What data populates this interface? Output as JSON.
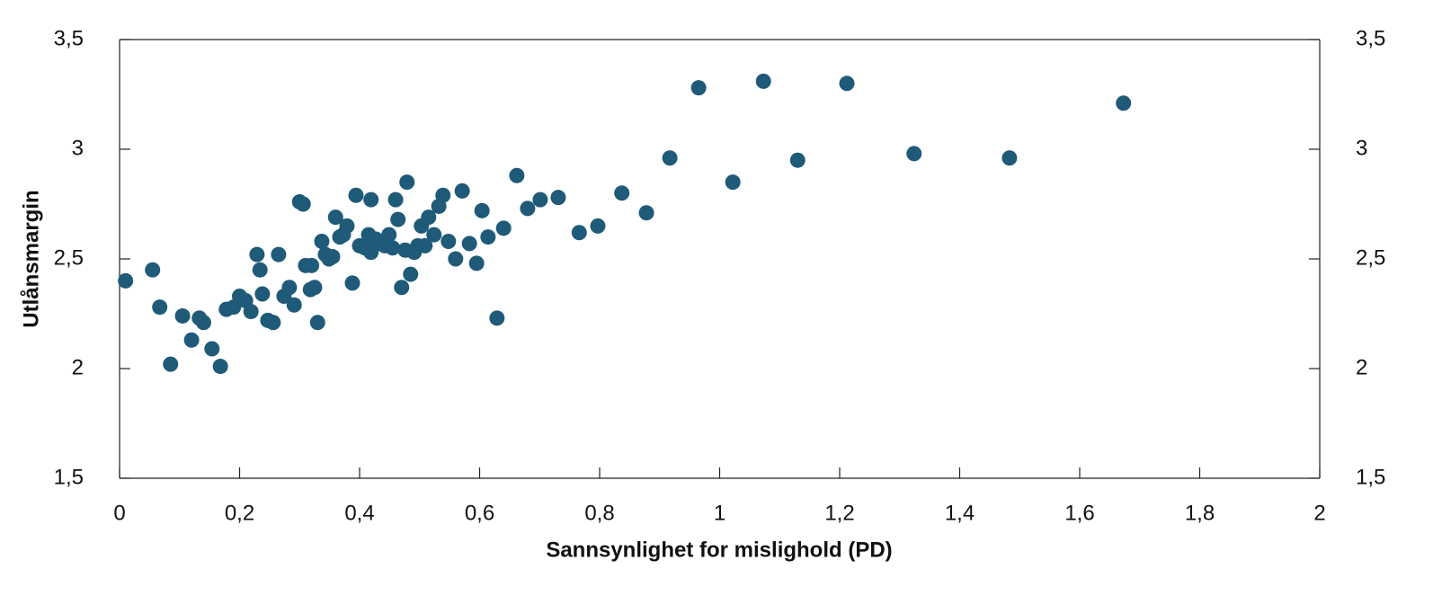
{
  "chart_data": {
    "type": "scatter",
    "xlabel": "Sannsynlighet for mislighold (PD)",
    "ylabel": "Utlånsmargin",
    "color": "#1f5a78",
    "xlim": [
      0,
      2
    ],
    "xticks": [
      0,
      {
        "value": 0.2,
        "label": "0,2"
      },
      {
        "value": 0.4,
        "label": "0,4"
      },
      {
        "value": 0.6,
        "label": "0,6"
      },
      {
        "value": 0.8,
        "label": "0,8"
      },
      1,
      {
        "value": 1.2,
        "label": "1,2"
      },
      {
        "value": 1.4,
        "label": "1,4"
      },
      {
        "value": 1.6,
        "label": "1,6"
      },
      {
        "value": 1.8,
        "label": "1,8"
      },
      2
    ],
    "ylim": [
      1.5,
      3.5
    ],
    "yticks": [
      {
        "value": 1.5,
        "label": "1,5"
      },
      2,
      {
        "value": 2.5,
        "label": "2,5"
      },
      3,
      {
        "value": 3.5,
        "label": "3,5"
      }
    ],
    "y2lim": [
      1.5,
      3.5
    ],
    "y2ticks": [
      {
        "value": 1.5,
        "label": "1,5"
      },
      2,
      {
        "value": 2.5,
        "label": "2,5"
      },
      3,
      {
        "value": 3.5,
        "label": "3,5"
      }
    ],
    "x": [
      0.01,
      0.055,
      0.067,
      0.085,
      0.105,
      0.12,
      0.133,
      0.14,
      0.154,
      0.168,
      0.178,
      0.19,
      0.2,
      0.21,
      0.219,
      0.229,
      0.234,
      0.238,
      0.247,
      0.256,
      0.265,
      0.274,
      0.283,
      0.291,
      0.3,
      0.306,
      0.31,
      0.318,
      0.32,
      0.325,
      0.33,
      0.337,
      0.343,
      0.349,
      0.355,
      0.36,
      0.367,
      0.373,
      0.379,
      0.388,
      0.394,
      0.4,
      0.409,
      0.415,
      0.419,
      0.419,
      0.427,
      0.434,
      0.442,
      0.449,
      0.455,
      0.46,
      0.464,
      0.47,
      0.476,
      0.479,
      0.485,
      0.491,
      0.497,
      0.503,
      0.509,
      0.515,
      0.524,
      0.532,
      0.539,
      0.548,
      0.56,
      0.571,
      0.583,
      0.595,
      0.604,
      0.614,
      0.629,
      0.64,
      0.662,
      0.68,
      0.701,
      0.731,
      0.766,
      0.797,
      0.837,
      0.878,
      0.917,
      0.965,
      1.022,
      1.073,
      1.13,
      1.212,
      1.324,
      1.483,
      1.673
    ],
    "y": [
      2.4,
      2.45,
      2.28,
      2.02,
      2.24,
      2.13,
      2.23,
      2.21,
      2.09,
      2.01,
      2.27,
      2.28,
      2.33,
      2.31,
      2.26,
      2.52,
      2.45,
      2.34,
      2.22,
      2.21,
      2.52,
      2.33,
      2.37,
      2.29,
      2.76,
      2.75,
      2.47,
      2.36,
      2.47,
      2.37,
      2.21,
      2.58,
      2.52,
      2.5,
      2.51,
      2.69,
      2.6,
      2.61,
      2.65,
      2.39,
      2.79,
      2.56,
      2.55,
      2.61,
      2.77,
      2.53,
      2.59,
      2.57,
      2.56,
      2.61,
      2.55,
      2.77,
      2.68,
      2.37,
      2.54,
      2.85,
      2.43,
      2.53,
      2.56,
      2.65,
      2.56,
      2.69,
      2.61,
      2.74,
      2.79,
      2.58,
      2.5,
      2.81,
      2.57,
      2.48,
      2.72,
      2.6,
      2.23,
      2.64,
      2.88,
      2.73,
      2.77,
      2.78,
      2.62,
      2.65,
      2.8,
      2.71,
      2.96,
      3.28,
      2.85,
      3.31,
      2.95,
      3.3,
      2.98,
      2.96,
      3.21
    ]
  }
}
